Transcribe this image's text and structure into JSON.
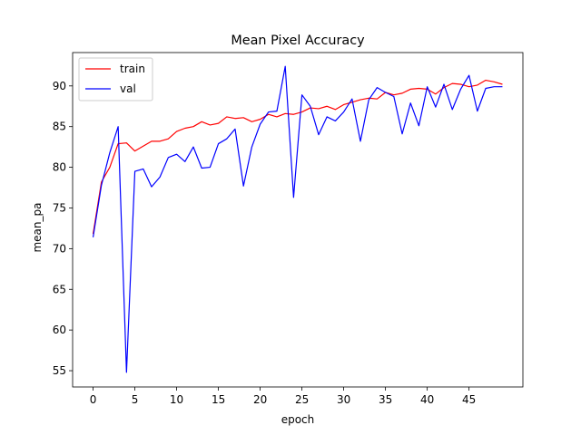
{
  "chart_data": {
    "type": "line",
    "title": "Mean Pixel Accuracy",
    "xlabel": "epoch",
    "ylabel": "mean_pa",
    "xlim": [
      -2.45,
      51.45
    ],
    "ylim": [
      53.0,
      94.1
    ],
    "xticks": [
      0,
      5,
      10,
      15,
      20,
      25,
      30,
      35,
      40,
      45
    ],
    "yticks": [
      55,
      60,
      65,
      70,
      75,
      80,
      85,
      90
    ],
    "grid": false,
    "legend_position": "top-left",
    "series": [
      {
        "name": "train",
        "color": "#ff0000",
        "x": [
          0,
          1,
          2,
          3,
          4,
          5,
          6,
          7,
          8,
          9,
          10,
          11,
          12,
          13,
          14,
          15,
          16,
          17,
          18,
          19,
          20,
          21,
          22,
          23,
          24,
          25,
          26,
          27,
          28,
          29,
          30,
          31,
          32,
          33,
          34,
          35,
          36,
          37,
          38,
          39,
          40,
          41,
          42,
          43,
          44,
          45,
          46,
          47,
          48,
          49
        ],
        "values": [
          71.8,
          78.2,
          80.0,
          82.9,
          83.0,
          82.0,
          82.6,
          83.2,
          83.2,
          83.5,
          84.4,
          84.8,
          85.0,
          85.6,
          85.2,
          85.4,
          86.2,
          86.0,
          86.1,
          85.6,
          85.9,
          86.5,
          86.2,
          86.6,
          86.5,
          86.8,
          87.3,
          87.2,
          87.5,
          87.1,
          87.7,
          88.0,
          88.3,
          88.5,
          88.4,
          89.2,
          88.9,
          89.1,
          89.6,
          89.7,
          89.6,
          89.0,
          89.8,
          90.3,
          90.2,
          89.9,
          90.1,
          90.7,
          90.5,
          90.2
        ]
      },
      {
        "name": "val",
        "color": "#0000ff",
        "x": [
          0,
          1,
          2,
          3,
          4,
          5,
          6,
          7,
          8,
          9,
          10,
          11,
          12,
          13,
          14,
          15,
          16,
          17,
          18,
          19,
          20,
          21,
          22,
          23,
          24,
          25,
          26,
          27,
          28,
          29,
          30,
          31,
          32,
          33,
          34,
          35,
          36,
          37,
          38,
          39,
          40,
          41,
          42,
          43,
          44,
          45,
          46,
          47,
          48,
          49
        ],
        "values": [
          71.4,
          77.8,
          81.8,
          85.0,
          54.8,
          79.5,
          79.8,
          77.6,
          78.8,
          81.2,
          81.6,
          80.7,
          82.5,
          79.9,
          80.0,
          82.9,
          83.5,
          84.7,
          77.7,
          82.5,
          85.3,
          86.8,
          86.9,
          92.4,
          76.3,
          88.9,
          87.5,
          84.0,
          86.2,
          85.7,
          86.8,
          88.4,
          83.2,
          88.3,
          89.8,
          89.2,
          88.7,
          84.1,
          87.9,
          85.1,
          89.9,
          87.4,
          90.2,
          87.1,
          89.6,
          91.3,
          86.9,
          89.7,
          89.9,
          89.9
        ]
      }
    ]
  }
}
